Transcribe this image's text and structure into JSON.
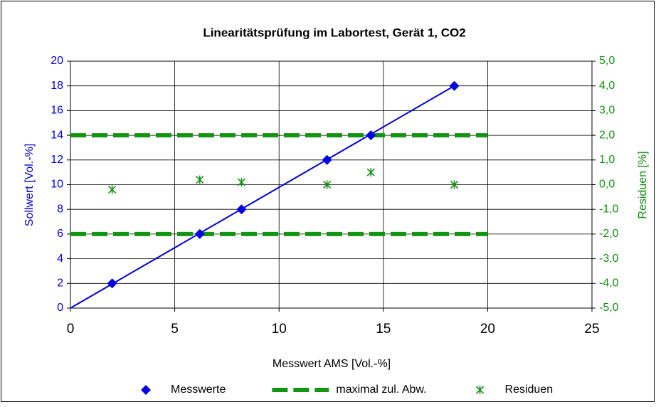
{
  "chart_data": {
    "type": "scatter",
    "title": "Linearitätsprüfung im Labortest, Gerät 1, CO2",
    "x_label": "Messwert AMS [Vol.-%]",
    "y_label": "Sollwert [Vol.-%]",
    "y2_label": "Residuen [%]",
    "xlim": [
      0,
      25
    ],
    "xticks": [
      0,
      5,
      10,
      15,
      20,
      25
    ],
    "ylim": [
      0,
      20
    ],
    "yticks": [
      0,
      2,
      4,
      6,
      8,
      10,
      12,
      14,
      16,
      18,
      20
    ],
    "y2lim": [
      -5,
      5
    ],
    "y2ticks": [
      {
        "value": -5,
        "label": "-5,0"
      },
      {
        "value": -4,
        "label": "-4,0"
      },
      {
        "value": -3,
        "label": "-3,0"
      },
      {
        "value": -2,
        "label": "-2,0"
      },
      {
        "value": -1,
        "label": "-1,0"
      },
      {
        "value": 0,
        "label": "0,0"
      },
      {
        "value": 1,
        "label": "1,0"
      },
      {
        "value": 2,
        "label": "2,0"
      },
      {
        "value": 3,
        "label": "3,0"
      },
      {
        "value": 4,
        "label": "4,0"
      },
      {
        "value": 5,
        "label": "5,0"
      }
    ],
    "grid": true,
    "legend": "bottom",
    "series": [
      {
        "name": "Messwerte",
        "kind": "diamond",
        "color": "#0000e0",
        "x": [
          2.0,
          6.2,
          8.2,
          12.3,
          14.4,
          18.4
        ],
        "values": [
          2,
          6,
          8,
          12,
          14,
          18
        ]
      },
      {
        "kind": "line",
        "color": "#0000e0",
        "x": [
          0,
          18.4
        ],
        "values": [
          0,
          18
        ]
      },
      {
        "name": "maximal zul. Abw.",
        "kind": "dash",
        "axis": "y2",
        "color": "#129612",
        "x": [
          0,
          20,
          null,
          0,
          20
        ],
        "values": [
          2,
          2,
          null,
          -2,
          -2
        ]
      },
      {
        "name": "Residuen",
        "kind": "asterisk",
        "axis": "y2",
        "color": "#109010",
        "x": [
          2.0,
          6.2,
          8.2,
          12.3,
          14.4,
          18.4
        ],
        "values": [
          -0.2,
          0.2,
          0.1,
          0.0,
          0.5,
          0.0
        ]
      }
    ]
  }
}
